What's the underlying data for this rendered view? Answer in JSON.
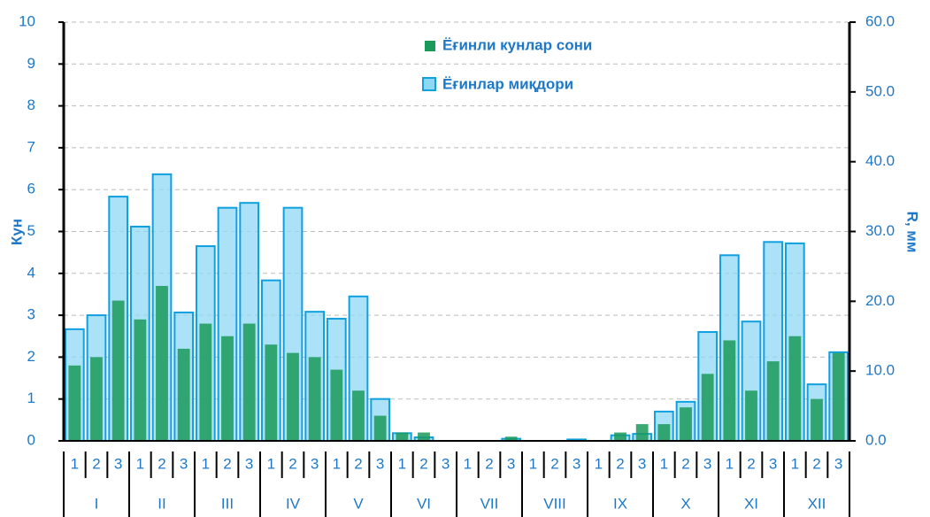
{
  "chart_data": {
    "type": "bar",
    "categories": [
      "1",
      "2",
      "3",
      "1",
      "2",
      "3",
      "1",
      "2",
      "3",
      "1",
      "2",
      "3",
      "1",
      "2",
      "3",
      "1",
      "2",
      "3",
      "1",
      "2",
      "3",
      "1",
      "2",
      "3",
      "1",
      "2",
      "3",
      "1",
      "2",
      "3",
      "1",
      "2",
      "3",
      "1",
      "2",
      "3"
    ],
    "groups": [
      "I",
      "II",
      "III",
      "IV",
      "V",
      "VI",
      "VII",
      "VIII",
      "IX",
      "X",
      "XI",
      "XII"
    ],
    "ylabel": "Кун",
    "y2label": "R, мм",
    "ylim": [
      0,
      10
    ],
    "yticks": [
      0,
      1,
      2,
      3,
      4,
      5,
      6,
      7,
      8,
      9,
      10
    ],
    "y2lim": [
      0,
      60
    ],
    "y2ticks": [
      {
        "value": 0,
        "label": "0.0"
      },
      {
        "value": 10,
        "label": "10.0"
      },
      {
        "value": 20,
        "label": "20.0"
      },
      {
        "value": 30,
        "label": "30.0"
      },
      {
        "value": 40,
        "label": "40.0"
      },
      {
        "value": 50,
        "label": "50.0"
      },
      {
        "value": 60,
        "label": "60.0"
      }
    ],
    "grid": true,
    "legend": "top",
    "series": [
      {
        "name": "Ёғинли кунлар сони",
        "color": "#1a9a5a",
        "values": [
          1.8,
          2.0,
          3.35,
          2.9,
          3.7,
          2.2,
          2.8,
          2.5,
          2.8,
          2.3,
          2.1,
          2.0,
          1.7,
          1.2,
          0.6,
          0.2,
          0.2,
          0,
          0,
          0,
          0.1,
          0,
          0,
          0,
          0,
          0.2,
          0.4,
          0.4,
          0.8,
          1.6,
          2.4,
          1.2,
          1.9,
          2.5,
          1.0,
          2.1
        ]
      },
      {
        "name": "Ёғинлар миқдори",
        "color": "#8fd8f4",
        "axis": "y2",
        "values": [
          16,
          18,
          35,
          30.7,
          38.2,
          18.4,
          27.9,
          33.4,
          34.1,
          23,
          33.4,
          18.5,
          17.5,
          20.7,
          6,
          1.1,
          0.5,
          0,
          0,
          0,
          0.3,
          0,
          0,
          0.2,
          0,
          0.8,
          1,
          4.2,
          5.6,
          15.6,
          26.6,
          17.1,
          28.5,
          28.3,
          8.1,
          12.7
        ]
      }
    ]
  }
}
